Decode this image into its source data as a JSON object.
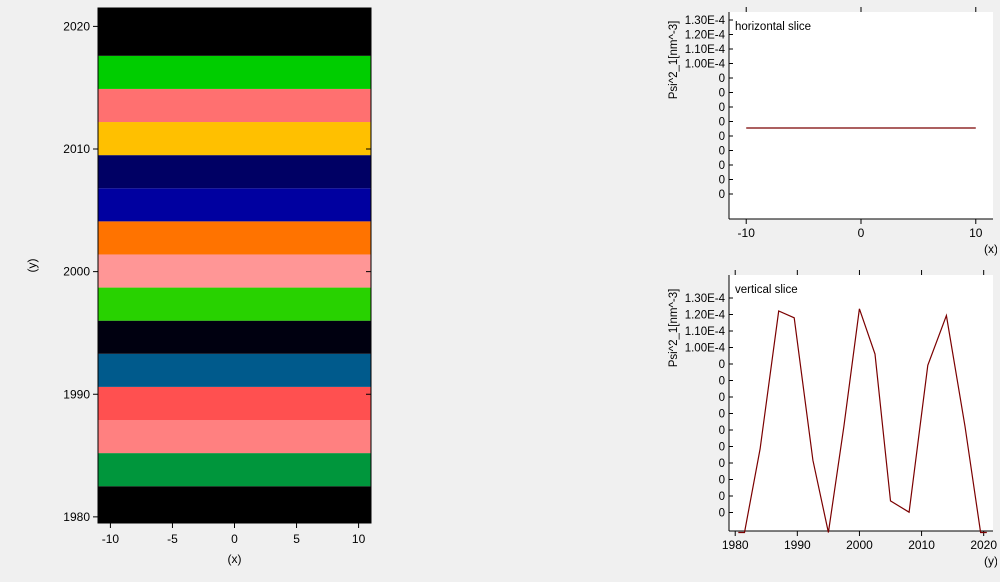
{
  "chart_data": [
    {
      "type": "heatmap",
      "xlabel": "(x)",
      "ylabel": "(y)",
      "xlim": [
        -11,
        11
      ],
      "ylim": [
        1979.5,
        2021.5
      ],
      "x_ticks": [
        -10,
        -5,
        0,
        5,
        10
      ],
      "y_ticks": [
        1980,
        1990,
        2000,
        2010,
        2020
      ],
      "bands": [
        {
          "y0": 1979.5,
          "y1": 1982.5,
          "color": "#000000"
        },
        {
          "y0": 1982.5,
          "y1": 1985.2,
          "color": "#00963c"
        },
        {
          "y0": 1985.2,
          "y1": 1987.9,
          "color": "#ff8080"
        },
        {
          "y0": 1987.9,
          "y1": 1990.6,
          "color": "#ff5050"
        },
        {
          "y0": 1990.6,
          "y1": 1993.3,
          "color": "#005a8c"
        },
        {
          "y0": 1993.3,
          "y1": 1996.0,
          "color": "#000010"
        },
        {
          "y0": 1996.0,
          "y1": 1998.7,
          "color": "#28d200"
        },
        {
          "y0": 1998.7,
          "y1": 2001.4,
          "color": "#ff9696"
        },
        {
          "y0": 2001.4,
          "y1": 2004.1,
          "color": "#ff7300"
        },
        {
          "y0": 2004.1,
          "y1": 2006.8,
          "color": "#0000a0"
        },
        {
          "y0": 2006.8,
          "y1": 2009.5,
          "color": "#000064"
        },
        {
          "y0": 2009.5,
          "y1": 2012.2,
          "color": "#ffc000"
        },
        {
          "y0": 2012.2,
          "y1": 2014.9,
          "color": "#ff7070"
        },
        {
          "y0": 2014.9,
          "y1": 2017.6,
          "color": "#00cd00"
        },
        {
          "y0": 2017.6,
          "y1": 2021.5,
          "color": "#000000"
        }
      ]
    },
    {
      "type": "line",
      "title": "horizontal slice",
      "xlabel": "(x)",
      "ylabel": "Psi^2_1[nm^-3]",
      "y_tick_labels": [
        "1.30E-4",
        "1.20E-4",
        "1.10E-4",
        "1.00E-4",
        "0",
        "0",
        "0",
        "0",
        "0",
        "0",
        "0",
        "0",
        "0"
      ],
      "x_ticks": [
        -10,
        0,
        10
      ],
      "xlim": [
        -11.5,
        11.5
      ],
      "color": "#7b0000",
      "series": [
        {
          "x": [
            -10,
            10
          ],
          "y": [
            0.5,
            0.5
          ]
        }
      ]
    },
    {
      "type": "line",
      "title": "vertical slice",
      "xlabel": "(y)",
      "ylabel": "Psi^2_1[nm^-3]",
      "y_tick_labels": [
        "1.30E-4",
        "1.20E-4",
        "1.10E-4",
        "1.00E-4",
        "0",
        "0",
        "0",
        "0",
        "0",
        "0",
        "0",
        "0",
        "0",
        "0"
      ],
      "x_ticks": [
        1980,
        1990,
        2000,
        2010,
        2020
      ],
      "xlim": [
        1979,
        2021.5
      ],
      "ylim": [
        0,
        1
      ],
      "color": "#7b0000",
      "series": [
        {
          "x": [
            1980.5,
            1981.5,
            1984,
            1987,
            1989.5,
            1992.5,
            1995,
            1997.5,
            2000,
            2002.5,
            2005,
            2008,
            2011,
            2014,
            2017,
            2019.5,
            2020.5
          ],
          "y": [
            -0.02,
            -0.02,
            0.35,
            0.96,
            0.93,
            0.3,
            -0.02,
            0.45,
            0.97,
            0.77,
            0.12,
            0.07,
            0.72,
            0.94,
            0.45,
            -0.02,
            -0.02
          ]
        }
      ]
    }
  ]
}
